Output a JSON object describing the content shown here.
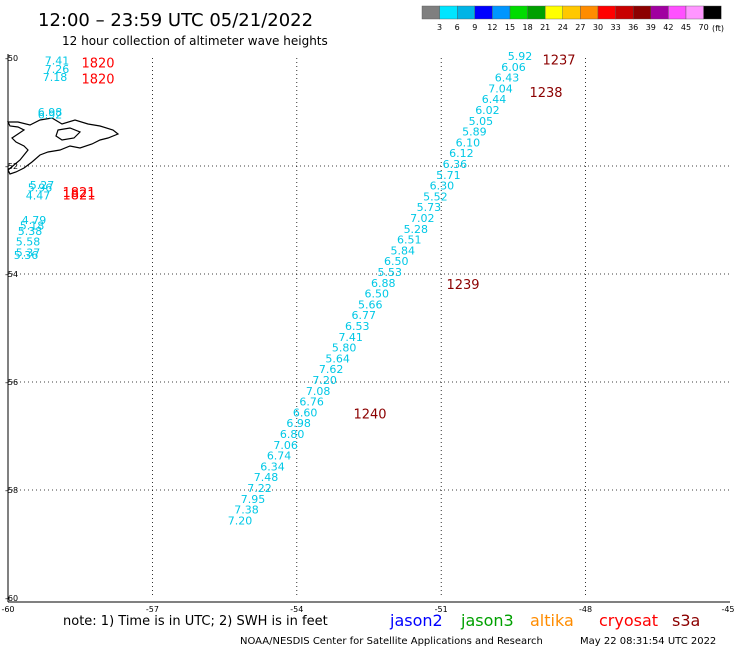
{
  "header": {
    "title": "12:00 – 23:59 UTC 05/21/2022",
    "subtitle": "12 hour collection of altimeter wave heights"
  },
  "legend": {
    "colors": [
      "#7f7f7f",
      "#00e5ff",
      "#00b4e6",
      "#0000ff",
      "#0096ff",
      "#00dc00",
      "#00a000",
      "#ffff00",
      "#ffc800",
      "#ff8c00",
      "#ff0000",
      "#c80000",
      "#8c0000",
      "#a000a0",
      "#ff50ff",
      "#ff96ff",
      "#000000"
    ],
    "labels": [
      "3",
      "6",
      "9",
      "12",
      "15",
      "18",
      "21",
      "24",
      "27",
      "30",
      "33",
      "36",
      "39",
      "42",
      "45",
      "70"
    ],
    "unit": "(ft)"
  },
  "axes": {
    "lat_labels": [
      "-50",
      "-52",
      "-54",
      "-56",
      "-58",
      "-60"
    ],
    "lon_labels": [
      "-60",
      "-57",
      "-54",
      "-51",
      "-48",
      "-45"
    ]
  },
  "measurements": [
    {
      "v": "5.92",
      "lat": -50.0
    },
    {
      "v": "6.06",
      "lat": -50.2
    },
    {
      "v": "6.43",
      "lat": -50.4
    },
    {
      "v": "7.04",
      "lat": -50.6
    },
    {
      "v": "6.44",
      "lat": -50.8
    },
    {
      "v": "6.02",
      "lat": -51.0
    },
    {
      "v": "5.05",
      "lat": -51.2
    },
    {
      "v": "5.89",
      "lat": -51.4
    },
    {
      "v": "6.10",
      "lat": -51.6
    },
    {
      "v": "6.12",
      "lat": -51.8
    },
    {
      "v": "6.36",
      "lat": -52.0
    },
    {
      "v": "5.71",
      "lat": -52.2
    },
    {
      "v": "6.30",
      "lat": -52.4
    },
    {
      "v": "5.52",
      "lat": -52.6
    },
    {
      "v": "5.73",
      "lat": -52.8
    },
    {
      "v": "7.02",
      "lat": -53.0
    },
    {
      "v": "5.28",
      "lat": -53.2
    },
    {
      "v": "6.51",
      "lat": -53.4
    },
    {
      "v": "5.84",
      "lat": -53.6
    },
    {
      "v": "6.50",
      "lat": -53.8
    },
    {
      "v": "5.53",
      "lat": -54.0
    },
    {
      "v": "6.88",
      "lat": -54.2
    },
    {
      "v": "6.50",
      "lat": -54.4
    },
    {
      "v": "5.66",
      "lat": -54.6
    },
    {
      "v": "6.77",
      "lat": -54.8
    },
    {
      "v": "6.53",
      "lat": -55.0
    },
    {
      "v": "7.41",
      "lat": -55.2
    },
    {
      "v": "5.80",
      "lat": -55.4
    },
    {
      "v": "5.64",
      "lat": -55.6
    },
    {
      "v": "7.62",
      "lat": -55.8
    },
    {
      "v": "7.20",
      "lat": -56.0
    },
    {
      "v": "7.08",
      "lat": -56.2
    },
    {
      "v": "6.76",
      "lat": -56.4
    },
    {
      "v": "6.60",
      "lat": -56.6
    },
    {
      "v": "6.98",
      "lat": -56.8
    },
    {
      "v": "6.80",
      "lat": -57.0
    },
    {
      "v": "7.06",
      "lat": -57.2
    },
    {
      "v": "6.74",
      "lat": -57.4
    },
    {
      "v": "6.34",
      "lat": -57.6
    },
    {
      "v": "7.48",
      "lat": -57.8
    },
    {
      "v": "7.22",
      "lat": -58.0
    },
    {
      "v": "7.95",
      "lat": -58.2
    },
    {
      "v": "7.38",
      "lat": -58.4
    },
    {
      "v": "7.20",
      "lat": -58.6
    }
  ],
  "west_measurements": [
    {
      "v": "7.41",
      "lat": -50.05
    },
    {
      "v": "7.26",
      "lat": -50.2
    },
    {
      "v": "7.18",
      "lat": -50.35
    },
    {
      "v": "6.98",
      "lat": -51.0
    },
    {
      "v": "6.92",
      "lat": -51.05
    },
    {
      "v": "5.27",
      "lat": -52.35
    },
    {
      "v": "5.96",
      "lat": -52.4
    },
    {
      "v": "4.47",
      "lat": -52.55
    },
    {
      "v": "4.79",
      "lat": -53.0
    },
    {
      "v": "5.18",
      "lat": -53.1
    },
    {
      "v": "5.38",
      "lat": -53.2
    },
    {
      "v": "5.58",
      "lat": -53.4
    },
    {
      "v": "5.37",
      "lat": -53.6
    },
    {
      "v": "5.36",
      "lat": -53.65
    }
  ],
  "times": [
    {
      "t": "1237",
      "color": "#8b0000"
    },
    {
      "t": "1238",
      "color": "#8b0000"
    },
    {
      "t": "1239",
      "color": "#8b0000"
    },
    {
      "t": "1240",
      "color": "#8b0000"
    },
    {
      "t": "1820",
      "color": "#ff0000"
    },
    {
      "t": "1820",
      "color": "#ff0000"
    },
    {
      "t": "1821",
      "color": "#ff0000"
    },
    {
      "t": "1821",
      "color": "#ff0000"
    }
  ],
  "footer": {
    "note": "note: 1) Time is in UTC; 2) SWH is in feet",
    "satellites": [
      {
        "name": "jason2",
        "color": "#0000ff"
      },
      {
        "name": "jason3",
        "color": "#00a000"
      },
      {
        "name": "altika",
        "color": "#ff8c00"
      },
      {
        "name": "cryosat",
        "color": "#ff0000"
      },
      {
        "name": "s3a",
        "color": "#8b0000"
      }
    ],
    "credit": "NOAA/NESDIS Center for Satellite Applications and Research",
    "timestamp": "May 22 08:31:54 UTC 2022"
  },
  "colors": {
    "measurement": "#00c8e6"
  }
}
